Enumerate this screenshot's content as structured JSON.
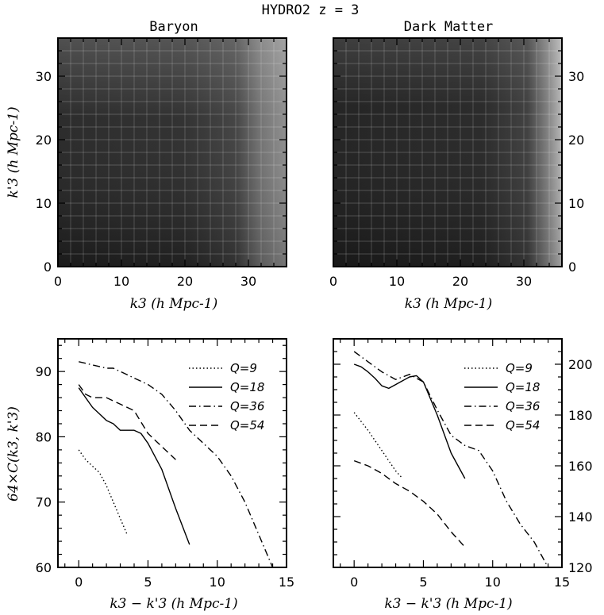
{
  "figure": {
    "title": "HYDRO2 z = 3"
  },
  "chart_data": [
    {
      "type": "heatmap",
      "title": "Baryon",
      "xlabel": "k3 (h Mpc-1)",
      "ylabel": "k'3 (h Mpc-1)",
      "xlim": [
        0,
        36
      ],
      "ylim": [
        0,
        36
      ],
      "x_ticks": [
        "0",
        "10",
        "20",
        "30"
      ],
      "y_ticks": [
        "0",
        "10",
        "20",
        "30"
      ],
      "grid": true,
      "colormap": "grayscale, darker = lower value",
      "description_values": "near-uniform dark field, brightening toward x ≈ 30–36 and toward the top-left edge"
    },
    {
      "type": "heatmap",
      "title": "Dark Matter",
      "xlabel": "k3 (h Mpc-1)",
      "ylabel": "",
      "xlim": [
        0,
        36
      ],
      "ylim": [
        0,
        36
      ],
      "x_ticks": [
        "0",
        "10",
        "20",
        "30"
      ],
      "y_ticks": [
        "0",
        "10",
        "20",
        "30"
      ],
      "grid": true,
      "colormap": "grayscale, darker = lower value",
      "description_values": "dark field with strong brightening toward x > 32 (right edge)"
    },
    {
      "type": "line",
      "title": "",
      "xlabel": "k3 − k'3 (h Mpc-1)",
      "ylabel": "64×C(k3, k'3)",
      "xlim": [
        -1.5,
        15
      ],
      "ylim": [
        60,
        95
      ],
      "x_ticks": [
        "0",
        "5",
        "10",
        "15"
      ],
      "y_ticks": [
        "60",
        "70",
        "80",
        "90"
      ],
      "legend_position": "top-right",
      "series": [
        {
          "name": "Q=9",
          "dash": "dotted",
          "x": [
            0,
            0.5,
            1,
            1.5,
            2,
            2.5,
            3,
            3.5
          ],
          "y": [
            78,
            76.5,
            75.5,
            74.5,
            72.5,
            70,
            67.5,
            65
          ]
        },
        {
          "name": "Q=18",
          "dash": "solid",
          "x": [
            0,
            0.5,
            1,
            1.5,
            2,
            2.5,
            3,
            4,
            4.5,
            5,
            6,
            7,
            8
          ],
          "y": [
            87.5,
            86,
            84.5,
            83.5,
            82.5,
            82,
            81,
            81,
            80.5,
            79,
            75,
            69,
            63.5
          ]
        },
        {
          "name": "Q=36",
          "dash": "dashdot",
          "x": [
            0,
            1,
            2,
            2.5,
            3,
            4,
            5,
            6,
            7,
            8,
            9,
            10,
            11,
            12,
            13,
            14
          ],
          "y": [
            91.5,
            91,
            90.5,
            90.5,
            90,
            89,
            88,
            86.5,
            84,
            81,
            79,
            77,
            74,
            70,
            65,
            60
          ]
        },
        {
          "name": "Q=54",
          "dash": "dashed",
          "x": [
            0,
            0.5,
            1,
            2,
            3,
            4,
            5,
            6,
            7
          ],
          "y": [
            88,
            86.5,
            86,
            86,
            85,
            84,
            80.5,
            78.5,
            76.5
          ]
        }
      ]
    },
    {
      "type": "line",
      "title": "",
      "xlabel": "k3 − k'3 (h Mpc-1)",
      "ylabel": "",
      "xlim": [
        -1.5,
        15
      ],
      "ylim": [
        120,
        210
      ],
      "x_ticks": [
        "0",
        "5",
        "10",
        "15"
      ],
      "y_ticks": [
        "120",
        "140",
        "160",
        "180",
        "200"
      ],
      "legend_position": "top-right",
      "series": [
        {
          "name": "Q=9",
          "dash": "dotted",
          "x": [
            0,
            1,
            2,
            3,
            3.5
          ],
          "y": [
            181,
            174,
            166,
            158,
            155
          ]
        },
        {
          "name": "Q=18",
          "dash": "solid",
          "x": [
            0,
            0.5,
            1,
            1.5,
            2,
            2.5,
            3,
            4,
            4.5,
            5,
            6,
            7,
            8
          ],
          "y": [
            200,
            199,
            197,
            194.5,
            191.5,
            190.5,
            192,
            195,
            195.5,
            193,
            180,
            165,
            155
          ]
        },
        {
          "name": "Q=36",
          "dash": "dashdot",
          "x": [
            0,
            1,
            2,
            3,
            4,
            5,
            6,
            7,
            8,
            9,
            10,
            11,
            12,
            13,
            14
          ],
          "y": [
            205,
            201,
            197,
            194,
            196,
            193,
            182,
            172,
            168,
            166,
            158,
            146,
            137,
            130,
            120
          ]
        },
        {
          "name": "Q=54",
          "dash": "dashed",
          "x": [
            0,
            1,
            2,
            3,
            4,
            5,
            6,
            7,
            8
          ],
          "y": [
            162,
            160,
            157,
            153,
            150,
            146,
            141,
            134,
            128
          ]
        }
      ]
    }
  ]
}
